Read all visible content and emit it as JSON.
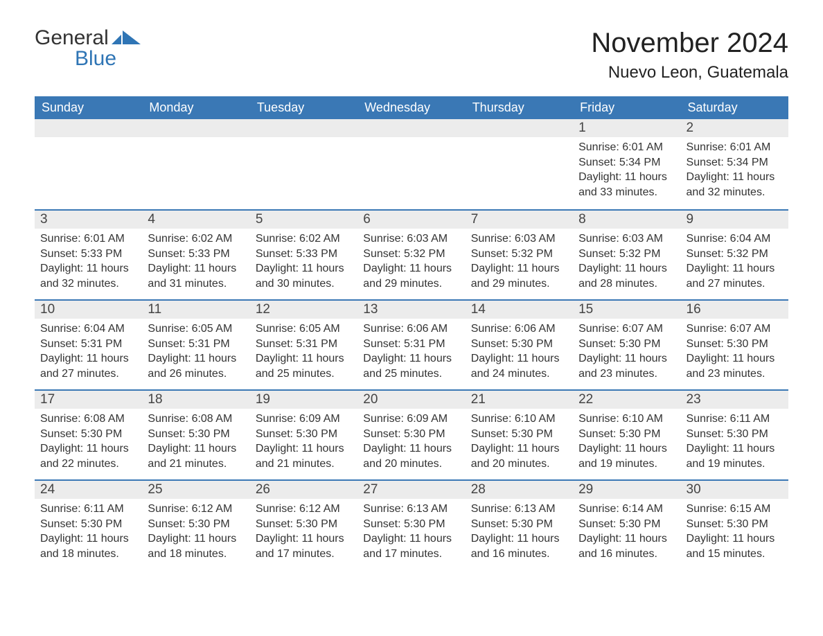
{
  "brand": {
    "word1": "General",
    "word2": "Blue",
    "icon_color": "#2f75b5"
  },
  "title": "November 2024",
  "location": "Nuevo Leon, Guatemala",
  "colors": {
    "header_bg": "#3a78b5",
    "header_text": "#ffffff",
    "daynum_bg": "#ececec",
    "day_border": "#3a78b5",
    "body_text": "#333333",
    "background": "#ffffff"
  },
  "day_headers": [
    "Sunday",
    "Monday",
    "Tuesday",
    "Wednesday",
    "Thursday",
    "Friday",
    "Saturday"
  ],
  "weeks": [
    [
      null,
      null,
      null,
      null,
      null,
      {
        "n": "1",
        "sunrise": "Sunrise: 6:01 AM",
        "sunset": "Sunset: 5:34 PM",
        "daylight": "Daylight: 11 hours and 33 minutes."
      },
      {
        "n": "2",
        "sunrise": "Sunrise: 6:01 AM",
        "sunset": "Sunset: 5:34 PM",
        "daylight": "Daylight: 11 hours and 32 minutes."
      }
    ],
    [
      {
        "n": "3",
        "sunrise": "Sunrise: 6:01 AM",
        "sunset": "Sunset: 5:33 PM",
        "daylight": "Daylight: 11 hours and 32 minutes."
      },
      {
        "n": "4",
        "sunrise": "Sunrise: 6:02 AM",
        "sunset": "Sunset: 5:33 PM",
        "daylight": "Daylight: 11 hours and 31 minutes."
      },
      {
        "n": "5",
        "sunrise": "Sunrise: 6:02 AM",
        "sunset": "Sunset: 5:33 PM",
        "daylight": "Daylight: 11 hours and 30 minutes."
      },
      {
        "n": "6",
        "sunrise": "Sunrise: 6:03 AM",
        "sunset": "Sunset: 5:32 PM",
        "daylight": "Daylight: 11 hours and 29 minutes."
      },
      {
        "n": "7",
        "sunrise": "Sunrise: 6:03 AM",
        "sunset": "Sunset: 5:32 PM",
        "daylight": "Daylight: 11 hours and 29 minutes."
      },
      {
        "n": "8",
        "sunrise": "Sunrise: 6:03 AM",
        "sunset": "Sunset: 5:32 PM",
        "daylight": "Daylight: 11 hours and 28 minutes."
      },
      {
        "n": "9",
        "sunrise": "Sunrise: 6:04 AM",
        "sunset": "Sunset: 5:32 PM",
        "daylight": "Daylight: 11 hours and 27 minutes."
      }
    ],
    [
      {
        "n": "10",
        "sunrise": "Sunrise: 6:04 AM",
        "sunset": "Sunset: 5:31 PM",
        "daylight": "Daylight: 11 hours and 27 minutes."
      },
      {
        "n": "11",
        "sunrise": "Sunrise: 6:05 AM",
        "sunset": "Sunset: 5:31 PM",
        "daylight": "Daylight: 11 hours and 26 minutes."
      },
      {
        "n": "12",
        "sunrise": "Sunrise: 6:05 AM",
        "sunset": "Sunset: 5:31 PM",
        "daylight": "Daylight: 11 hours and 25 minutes."
      },
      {
        "n": "13",
        "sunrise": "Sunrise: 6:06 AM",
        "sunset": "Sunset: 5:31 PM",
        "daylight": "Daylight: 11 hours and 25 minutes."
      },
      {
        "n": "14",
        "sunrise": "Sunrise: 6:06 AM",
        "sunset": "Sunset: 5:30 PM",
        "daylight": "Daylight: 11 hours and 24 minutes."
      },
      {
        "n": "15",
        "sunrise": "Sunrise: 6:07 AM",
        "sunset": "Sunset: 5:30 PM",
        "daylight": "Daylight: 11 hours and 23 minutes."
      },
      {
        "n": "16",
        "sunrise": "Sunrise: 6:07 AM",
        "sunset": "Sunset: 5:30 PM",
        "daylight": "Daylight: 11 hours and 23 minutes."
      }
    ],
    [
      {
        "n": "17",
        "sunrise": "Sunrise: 6:08 AM",
        "sunset": "Sunset: 5:30 PM",
        "daylight": "Daylight: 11 hours and 22 minutes."
      },
      {
        "n": "18",
        "sunrise": "Sunrise: 6:08 AM",
        "sunset": "Sunset: 5:30 PM",
        "daylight": "Daylight: 11 hours and 21 minutes."
      },
      {
        "n": "19",
        "sunrise": "Sunrise: 6:09 AM",
        "sunset": "Sunset: 5:30 PM",
        "daylight": "Daylight: 11 hours and 21 minutes."
      },
      {
        "n": "20",
        "sunrise": "Sunrise: 6:09 AM",
        "sunset": "Sunset: 5:30 PM",
        "daylight": "Daylight: 11 hours and 20 minutes."
      },
      {
        "n": "21",
        "sunrise": "Sunrise: 6:10 AM",
        "sunset": "Sunset: 5:30 PM",
        "daylight": "Daylight: 11 hours and 20 minutes."
      },
      {
        "n": "22",
        "sunrise": "Sunrise: 6:10 AM",
        "sunset": "Sunset: 5:30 PM",
        "daylight": "Daylight: 11 hours and 19 minutes."
      },
      {
        "n": "23",
        "sunrise": "Sunrise: 6:11 AM",
        "sunset": "Sunset: 5:30 PM",
        "daylight": "Daylight: 11 hours and 19 minutes."
      }
    ],
    [
      {
        "n": "24",
        "sunrise": "Sunrise: 6:11 AM",
        "sunset": "Sunset: 5:30 PM",
        "daylight": "Daylight: 11 hours and 18 minutes."
      },
      {
        "n": "25",
        "sunrise": "Sunrise: 6:12 AM",
        "sunset": "Sunset: 5:30 PM",
        "daylight": "Daylight: 11 hours and 18 minutes."
      },
      {
        "n": "26",
        "sunrise": "Sunrise: 6:12 AM",
        "sunset": "Sunset: 5:30 PM",
        "daylight": "Daylight: 11 hours and 17 minutes."
      },
      {
        "n": "27",
        "sunrise": "Sunrise: 6:13 AM",
        "sunset": "Sunset: 5:30 PM",
        "daylight": "Daylight: 11 hours and 17 minutes."
      },
      {
        "n": "28",
        "sunrise": "Sunrise: 6:13 AM",
        "sunset": "Sunset: 5:30 PM",
        "daylight": "Daylight: 11 hours and 16 minutes."
      },
      {
        "n": "29",
        "sunrise": "Sunrise: 6:14 AM",
        "sunset": "Sunset: 5:30 PM",
        "daylight": "Daylight: 11 hours and 16 minutes."
      },
      {
        "n": "30",
        "sunrise": "Sunrise: 6:15 AM",
        "sunset": "Sunset: 5:30 PM",
        "daylight": "Daylight: 11 hours and 15 minutes."
      }
    ]
  ]
}
